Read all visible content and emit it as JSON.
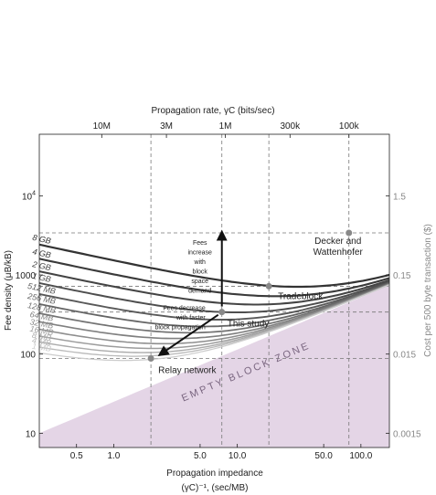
{
  "chart_data": {
    "type": "line",
    "x_scale": "log",
    "y_scale": "log",
    "xlabel": "Propagation impedance",
    "xlabel_units": "(γC)⁻¹, (sec/MB)",
    "ylabel": "Fee density (μB/kB)",
    "top_axis_label": "Propagation rate, γC (bits/sec)",
    "right_axis_label": "Cost per 500 byte transaction ($)",
    "xlim": [
      0.25,
      170
    ],
    "ylim": [
      6.6,
      60000
    ],
    "x_ticks": [
      {
        "value": 0.5,
        "label": "0.5"
      },
      {
        "value": 1,
        "label": "1.0"
      },
      {
        "value": 5,
        "label": "5.0"
      },
      {
        "value": 10,
        "label": "10.0"
      },
      {
        "value": 50,
        "label": "50.0"
      },
      {
        "value": 100,
        "label": "100.0"
      }
    ],
    "y_ticks": [
      {
        "value": 10,
        "label": "10"
      },
      {
        "value": 100,
        "label": "100"
      },
      {
        "value": 1000,
        "label": "1000"
      },
      {
        "value": 10000,
        "label": "10",
        "sup": "4"
      }
    ],
    "top_ticks": [
      {
        "x": 0.8,
        "label": "10M"
      },
      {
        "x": 2.67,
        "label": "3M"
      },
      {
        "x": 8,
        "label": "1M"
      },
      {
        "x": 26.7,
        "label": "300k"
      },
      {
        "x": 80,
        "label": "100k"
      }
    ],
    "right_ticks": [
      {
        "y": 10,
        "label": "0.0015"
      },
      {
        "y": 100,
        "label": "0.015"
      },
      {
        "y": 1000,
        "label": "0.15"
      },
      {
        "y": 10000,
        "label": "1.5"
      }
    ],
    "lower_bound_slope": 0.66,
    "block_size_curves": [
      {
        "label": "8 GB",
        "offset_decades": 1.78,
        "color": "#333333"
      },
      {
        "label": "4 GB",
        "offset_decades": 1.6,
        "color": "#3a3a3a"
      },
      {
        "label": "2 GB",
        "offset_decades": 1.44,
        "color": "#444444"
      },
      {
        "label": "1 GB",
        "offset_decades": 1.29,
        "color": "#4e4e4e"
      },
      {
        "label": "512 MB",
        "offset_decades": 1.15,
        "color": "#595959"
      },
      {
        "label": "256 MB",
        "offset_decades": 1.02,
        "color": "#656565"
      },
      {
        "label": "128 MB",
        "offset_decades": 0.9,
        "color": "#727272"
      },
      {
        "label": "64 MB",
        "offset_decades": 0.79,
        "color": "#808080"
      },
      {
        "label": "32 MB",
        "offset_decades": 0.69,
        "color": "#8e8e8e"
      },
      {
        "label": "16 MB",
        "offset_decades": 0.6,
        "color": "#9c9c9c"
      },
      {
        "label": "8 MB",
        "offset_decades": 0.52,
        "color": "#ababab"
      },
      {
        "label": "4 MB",
        "offset_decades": 0.45,
        "color": "#bababa"
      },
      {
        "label": "1 MB",
        "offset_decades": 0.37,
        "color": "#cccccc"
      }
    ],
    "points": [
      {
        "label": "Relay network",
        "x": 2.0,
        "y": 88
      },
      {
        "label": "This study",
        "x": 7.5,
        "y": 340
      },
      {
        "label": "Tradeblock",
        "x": 18,
        "y": 720
      },
      {
        "label": "Decker and Wattenhofer",
        "x": 80,
        "y": 3400
      }
    ],
    "annotations": {
      "up_arrow": [
        "Fees",
        "increase",
        "with",
        "block",
        "space",
        "demand"
      ],
      "left_arrow": [
        "Fees decrease",
        "with faster",
        "block propagation"
      ],
      "zone": "EMPTY BLOCK ZONE"
    },
    "zone_color": "#e4d5e6",
    "grid": false
  }
}
